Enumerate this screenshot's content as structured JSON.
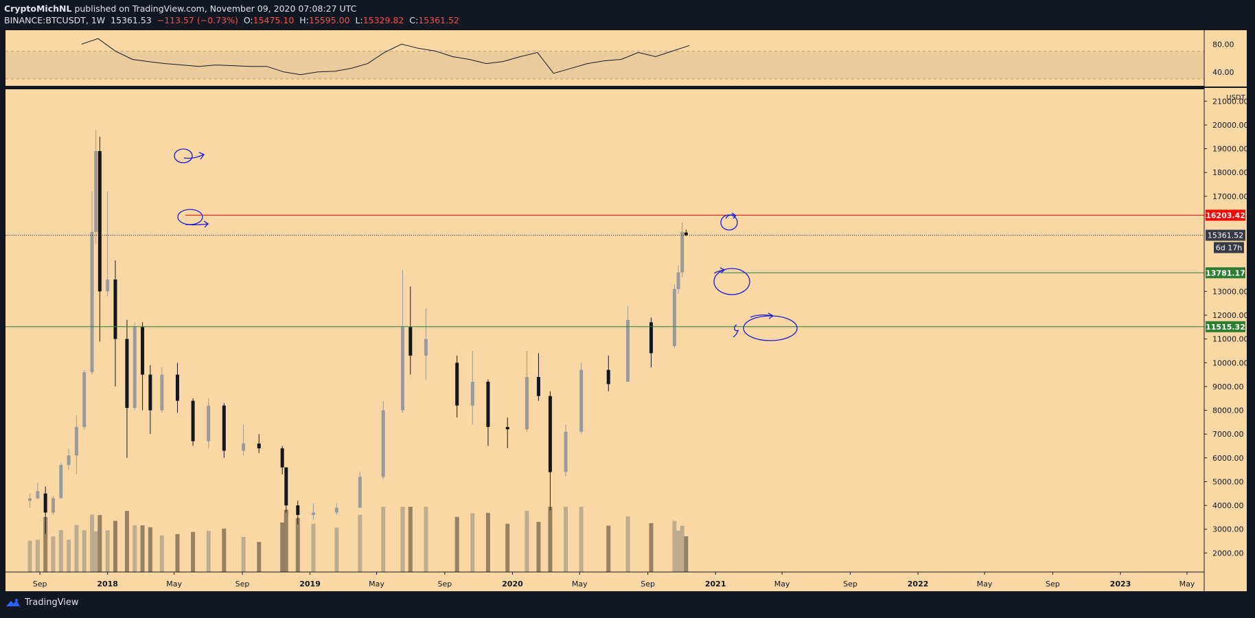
{
  "header": {
    "author": "CryptoMichNL",
    "published": "published on TradingView.com, November 09, 2020 07:08:27 UTC",
    "symbol": "BINANCE:BTCUSDT, 1W",
    "last": "15361.53",
    "change": "−113.57 (−0.73%)",
    "open_label": "O:",
    "open": "15475.10",
    "high_label": "H:",
    "high": "15595.00",
    "low_label": "L:",
    "low": "15329.82",
    "close_label": "C:",
    "close": "15361.52"
  },
  "footer": {
    "brand": "TradingView"
  },
  "colors": {
    "background": "#f9d8a5",
    "frame": "#131722",
    "resistance": "#ff0000",
    "support": "#2e7d32",
    "annotation": "#1a1ad6",
    "rsi_band": "#eacb9c"
  },
  "chart_data": [
    {
      "type": "line",
      "panel": "rsi",
      "y_ticks": [
        "80.00",
        "40.00"
      ],
      "ylim": [
        20,
        100
      ],
      "band": [
        70,
        30
      ],
      "x": [
        "2017-11",
        "2017-12",
        "2018-01",
        "2018-02",
        "2018-03",
        "2018-04",
        "2018-05",
        "2018-06",
        "2018-07",
        "2018-08",
        "2018-09",
        "2018-10",
        "2018-11",
        "2018-12",
        "2019-01",
        "2019-02",
        "2019-03",
        "2019-04",
        "2019-05",
        "2019-06",
        "2019-07",
        "2019-08",
        "2019-09",
        "2019-10",
        "2019-11",
        "2019-12",
        "2020-01",
        "2020-02",
        "2020-03",
        "2020-04",
        "2020-05",
        "2020-06",
        "2020-07",
        "2020-08",
        "2020-09",
        "2020-10",
        "2020-11"
      ],
      "values": [
        80,
        88,
        70,
        58,
        55,
        52,
        50,
        48,
        50,
        49,
        48,
        48,
        40,
        36,
        40,
        41,
        45,
        52,
        68,
        80,
        74,
        70,
        62,
        58,
        52,
        55,
        62,
        68,
        38,
        45,
        52,
        56,
        58,
        68,
        62,
        70,
        78
      ]
    },
    {
      "type": "candlestick",
      "panel": "price",
      "unit": "USDT",
      "y_ticks": [
        "21000.00",
        "20000.00",
        "19000.00",
        "18000.00",
        "17000.00",
        "13000.00",
        "12000.00",
        "11000.00",
        "10000.00",
        "9000.00",
        "8000.00",
        "7000.00",
        "6000.00",
        "5000.00",
        "4000.00",
        "3000.00",
        "2000.00"
      ],
      "ylim": [
        1200,
        21500
      ],
      "x_ticks": [
        "Sep",
        "2018",
        "May",
        "Sep",
        "2019",
        "May",
        "Sep",
        "2020",
        "May",
        "Sep",
        "2021",
        "May",
        "Sep",
        "2022",
        "May",
        "Sep",
        "2023",
        "May"
      ],
      "levels": [
        {
          "label": "16203.42",
          "value": 16203.42,
          "kind": "resistance"
        },
        {
          "label": "13781.17",
          "value": 13781.17,
          "kind": "support"
        },
        {
          "label": "11515.32",
          "value": 11515.32,
          "kind": "support"
        }
      ],
      "last_price": {
        "label": "15361.52",
        "value": 15361.52,
        "countdown": "6d 17h"
      },
      "candles": [
        {
          "d": "2017-08-14",
          "o": 4200,
          "h": 4480,
          "l": 3900,
          "c": 4300
        },
        {
          "d": "2017-08-28",
          "o": 4300,
          "h": 4950,
          "l": 4250,
          "c": 4600
        },
        {
          "d": "2017-09-11",
          "o": 4500,
          "h": 4800,
          "l": 2800,
          "c": 3700
        },
        {
          "d": "2017-09-25",
          "o": 3700,
          "h": 4400,
          "l": 3600,
          "c": 4300
        },
        {
          "d": "2017-10-09",
          "o": 4300,
          "h": 5800,
          "l": 4300,
          "c": 5700
        },
        {
          "d": "2017-10-23",
          "o": 5700,
          "h": 6400,
          "l": 5500,
          "c": 6100
        },
        {
          "d": "2017-11-06",
          "o": 6100,
          "h": 7800,
          "l": 5300,
          "c": 7300
        },
        {
          "d": "2017-11-20",
          "o": 7300,
          "h": 9700,
          "l": 7200,
          "c": 9600
        },
        {
          "d": "2017-12-04",
          "o": 9600,
          "h": 17200,
          "l": 9500,
          "c": 15500
        },
        {
          "d": "2017-12-11",
          "o": 15500,
          "h": 19800,
          "l": 15000,
          "c": 18900
        },
        {
          "d": "2017-12-18",
          "o": 18900,
          "h": 19500,
          "l": 10900,
          "c": 13000
        },
        {
          "d": "2018-01-01",
          "o": 13000,
          "h": 17200,
          "l": 12800,
          "c": 13500
        },
        {
          "d": "2018-01-15",
          "o": 13500,
          "h": 14300,
          "l": 9000,
          "c": 11000
        },
        {
          "d": "2018-02-05",
          "o": 11000,
          "h": 11800,
          "l": 6000,
          "c": 8100
        },
        {
          "d": "2018-02-19",
          "o": 8100,
          "h": 11700,
          "l": 8000,
          "c": 11500
        },
        {
          "d": "2018-03-05",
          "o": 11500,
          "h": 11700,
          "l": 8000,
          "c": 9500
        },
        {
          "d": "2018-03-19",
          "o": 9500,
          "h": 9900,
          "l": 7000,
          "c": 8000
        },
        {
          "d": "2018-04-09",
          "o": 8000,
          "h": 9800,
          "l": 7900,
          "c": 9500
        },
        {
          "d": "2018-05-07",
          "o": 9500,
          "h": 10000,
          "l": 7900,
          "c": 8400
        },
        {
          "d": "2018-06-04",
          "o": 8400,
          "h": 8500,
          "l": 6500,
          "c": 6700
        },
        {
          "d": "2018-07-02",
          "o": 6700,
          "h": 8500,
          "l": 6400,
          "c": 8200
        },
        {
          "d": "2018-07-30",
          "o": 8200,
          "h": 8300,
          "l": 6000,
          "c": 6300
        },
        {
          "d": "2018-09-03",
          "o": 6300,
          "h": 7400,
          "l": 6100,
          "c": 6600
        },
        {
          "d": "2018-10-01",
          "o": 6600,
          "h": 7000,
          "l": 6200,
          "c": 6400
        },
        {
          "d": "2018-11-12",
          "o": 6400,
          "h": 6500,
          "l": 5300,
          "c": 5600
        },
        {
          "d": "2018-11-19",
          "o": 5600,
          "h": 5600,
          "l": 3700,
          "c": 4000
        },
        {
          "d": "2018-12-10",
          "o": 4000,
          "h": 4200,
          "l": 3200,
          "c": 3600
        },
        {
          "d": "2019-01-07",
          "o": 3600,
          "h": 4100,
          "l": 3400,
          "c": 3700
        },
        {
          "d": "2019-02-18",
          "o": 3700,
          "h": 4100,
          "l": 3600,
          "c": 3900
        },
        {
          "d": "2019-04-01",
          "o": 3900,
          "h": 5400,
          "l": 3900,
          "c": 5200
        },
        {
          "d": "2019-05-13",
          "o": 5200,
          "h": 8400,
          "l": 5100,
          "c": 8000
        },
        {
          "d": "2019-06-17",
          "o": 8000,
          "h": 13900,
          "l": 7900,
          "c": 11500
        },
        {
          "d": "2019-07-01",
          "o": 11500,
          "h": 13200,
          "l": 9500,
          "c": 10300
        },
        {
          "d": "2019-07-29",
          "o": 10300,
          "h": 12300,
          "l": 9300,
          "c": 11000
        },
        {
          "d": "2019-09-23",
          "o": 10000,
          "h": 10300,
          "l": 7700,
          "c": 8200
        },
        {
          "d": "2019-10-21",
          "o": 8200,
          "h": 10500,
          "l": 7400,
          "c": 9200
        },
        {
          "d": "2019-11-18",
          "o": 9200,
          "h": 9300,
          "l": 6500,
          "c": 7300
        },
        {
          "d": "2019-12-23",
          "o": 7300,
          "h": 7700,
          "l": 6400,
          "c": 7200
        },
        {
          "d": "2020-01-27",
          "o": 7200,
          "h": 10500,
          "l": 7100,
          "c": 9400
        },
        {
          "d": "2020-02-17",
          "o": 9400,
          "h": 10400,
          "l": 8400,
          "c": 8600
        },
        {
          "d": "2020-03-09",
          "o": 8600,
          "h": 8800,
          "l": 3800,
          "c": 5400
        },
        {
          "d": "2020-04-06",
          "o": 5400,
          "h": 7400,
          "l": 5200,
          "c": 7100
        },
        {
          "d": "2020-05-04",
          "o": 7100,
          "h": 10000,
          "l": 7000,
          "c": 9700
        },
        {
          "d": "2020-06-22",
          "o": 9700,
          "h": 10300,
          "l": 8800,
          "c": 9100
        },
        {
          "d": "2020-07-27",
          "o": 9200,
          "h": 12400,
          "l": 9200,
          "c": 11800
        },
        {
          "d": "2020-09-07",
          "o": 11700,
          "h": 11900,
          "l": 9800,
          "c": 10400
        },
        {
          "d": "2020-10-19",
          "o": 10700,
          "h": 13300,
          "l": 10600,
          "c": 13100
        },
        {
          "d": "2020-10-26",
          "o": 13100,
          "h": 14100,
          "l": 12900,
          "c": 13800
        },
        {
          "d": "2020-11-02",
          "o": 13800,
          "h": 15900,
          "l": 13600,
          "c": 15500
        },
        {
          "d": "2020-11-09",
          "o": 15475.1,
          "h": 15595.0,
          "l": 15329.82,
          "c": 15361.52
        }
      ],
      "volume_panel": true
    }
  ]
}
